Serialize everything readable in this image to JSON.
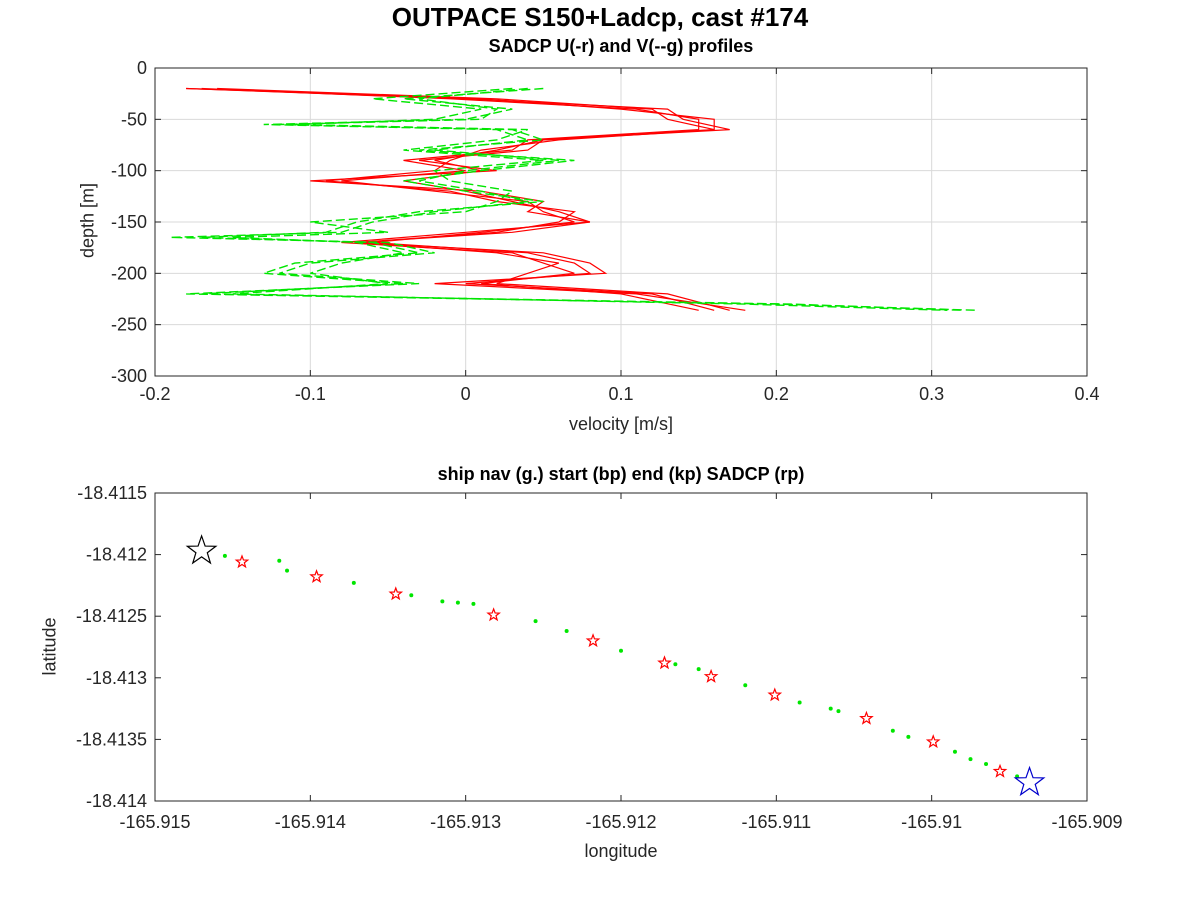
{
  "figure": {
    "title": "OUTPACE S150+Ladcp, cast #174"
  },
  "chart_data": [
    {
      "type": "line",
      "title": "SADCP U(-r) and V(--g) profiles",
      "xlabel": "velocity [m/s]",
      "ylabel": "depth [m]",
      "xlim": [
        -0.2,
        0.4
      ],
      "ylim": [
        -300,
        0
      ],
      "xticks": [
        "-0.2",
        "-0.1",
        "0",
        "0.1",
        "0.2",
        "0.3",
        "0.4"
      ],
      "yticks": [
        "0",
        "-50",
        "-100",
        "-150",
        "-200",
        "-250",
        "-300"
      ],
      "grid": true,
      "series": [
        {
          "style": "solid",
          "color": "#ff0000",
          "profiles": [
            {
              "depth": [
                -20,
                -30,
                -40,
                -50,
                -60,
                -70,
                -80,
                -90,
                -100,
                -110,
                -120,
                -130,
                -140,
                -150,
                -160,
                -170,
                -180,
                -190,
                -200,
                -210,
                -220,
                -236
              ],
              "u": [
                -0.18,
                0.0,
                0.13,
                0.14,
                0.17,
                0.05,
                0.02,
                -0.02,
                0.01,
                -0.04,
                0.0,
                0.03,
                0.06,
                0.08,
                0.03,
                -0.07,
                0.02,
                0.06,
                0.04,
                0.02,
                0.13,
                0.17
              ]
            },
            {
              "depth": [
                -20,
                -30,
                -40,
                -50,
                -60,
                -70,
                -80,
                -90,
                -100,
                -110,
                -120,
                -130,
                -140,
                -150,
                -160,
                -170,
                -180,
                -190,
                -200,
                -210,
                -220,
                -236
              ],
              "u": [
                -0.17,
                -0.01,
                0.11,
                0.15,
                0.15,
                0.04,
                0.03,
                -0.04,
                0.0,
                -0.08,
                -0.02,
                0.04,
                0.05,
                0.07,
                0.01,
                -0.06,
                0.04,
                0.07,
                0.08,
                0.0,
                0.12,
                0.16
              ]
            },
            {
              "depth": [
                -20,
                -30,
                -40,
                -50,
                -60,
                -70,
                -80,
                -90,
                -100,
                -110,
                -120,
                -130,
                -140,
                -150,
                -160,
                -170,
                -180,
                -190,
                -200,
                -210,
                -220,
                -236
              ],
              "u": [
                -0.16,
                0.02,
                0.12,
                0.13,
                0.16,
                0.06,
                0.01,
                -0.01,
                -0.02,
                -0.09,
                -0.01,
                0.02,
                0.07,
                0.06,
                0.02,
                -0.07,
                0.05,
                0.08,
                0.09,
                -0.02,
                0.11,
                0.18
              ]
            },
            {
              "depth": [
                -20,
                -30,
                -40,
                -50,
                -60,
                -70,
                -80,
                -90,
                -100,
                -110,
                -120,
                -130,
                -140,
                -150,
                -160,
                -170,
                -180,
                -190,
                -200,
                -210,
                -220,
                -236
              ],
              "u": [
                -0.18,
                0.01,
                0.1,
                0.16,
                0.16,
                0.05,
                0.04,
                -0.03,
                0.02,
                -0.1,
                0.01,
                0.05,
                0.04,
                0.08,
                0.0,
                -0.08,
                0.03,
                0.05,
                0.07,
                0.01,
                0.1,
                0.15
              ]
            }
          ]
        },
        {
          "style": "dashed",
          "color": "#00e600",
          "profiles": [
            {
              "depth": [
                -20,
                -30,
                -40,
                -50,
                -55,
                -60,
                -70,
                -80,
                -90,
                -100,
                -110,
                -120,
                -130,
                -140,
                -150,
                -160,
                -165,
                -170,
                -180,
                -190,
                -200,
                -210,
                -220,
                -230,
                -236
              ],
              "v": [
                0.05,
                -0.04,
                0.03,
                0.0,
                -0.13,
                0.02,
                0.04,
                -0.02,
                0.06,
                0.0,
                -0.03,
                0.01,
                0.04,
                -0.02,
                -0.06,
                -0.08,
                -0.19,
                -0.05,
                -0.02,
                -0.1,
                -0.12,
                -0.03,
                -0.18,
                0.2,
                0.33
              ]
            },
            {
              "depth": [
                -20,
                -30,
                -40,
                -50,
                -55,
                -60,
                -70,
                -80,
                -90,
                -100,
                -110,
                -120,
                -130,
                -140,
                -150,
                -160,
                -165,
                -170,
                -180,
                -190,
                -200,
                -210,
                -220,
                -230,
                -236
              ],
              "v": [
                0.03,
                -0.06,
                0.01,
                -0.02,
                -0.11,
                0.04,
                0.02,
                -0.04,
                0.05,
                -0.02,
                -0.01,
                0.03,
                0.02,
                0.0,
                -0.1,
                -0.05,
                -0.15,
                -0.07,
                -0.04,
                -0.08,
                -0.1,
                -0.05,
                -0.15,
                0.18,
                0.31
              ]
            },
            {
              "depth": [
                -20,
                -30,
                -40,
                -50,
                -55,
                -60,
                -70,
                -80,
                -90,
                -100,
                -110,
                -120,
                -130,
                -140,
                -150,
                -160,
                -165,
                -170,
                -180,
                -190,
                -200,
                -210,
                -220,
                -230,
                -236
              ],
              "v": [
                0.04,
                -0.03,
                0.02,
                0.01,
                -0.12,
                0.03,
                0.05,
                -0.03,
                0.07,
                0.01,
                -0.04,
                0.0,
                0.05,
                -0.03,
                -0.07,
                -0.09,
                -0.17,
                -0.06,
                -0.03,
                -0.11,
                -0.13,
                -0.04,
                -0.17,
                0.21,
                0.32
              ]
            }
          ]
        }
      ]
    },
    {
      "type": "scatter",
      "title": "ship nav (g.) start (bp) end (kp) SADCP (rp)",
      "xlabel": "longitude",
      "ylabel": "latitude",
      "xlim": [
        -165.915,
        -165.909
      ],
      "ylim": [
        -18.414,
        -18.4115
      ],
      "xticks": [
        "-165.915",
        "-165.914",
        "-165.913",
        "-165.912",
        "-165.911",
        "-165.91",
        "-165.909"
      ],
      "yticks": [
        "-18.4115",
        "-18.412",
        "-18.4125",
        "-18.413",
        "-18.4135",
        "-18.414"
      ],
      "grid": false,
      "start": {
        "lon": -165.9147,
        "lat": -18.41197,
        "marker": "star",
        "color": "#000000"
      },
      "end": {
        "lon": -165.90937,
        "lat": -18.41385,
        "marker": "star",
        "color": "#0000cc"
      },
      "sadcp_points": [
        {
          "lon": -165.91444,
          "lat": -18.41206
        },
        {
          "lon": -165.91396,
          "lat": -18.41218
        },
        {
          "lon": -165.91345,
          "lat": -18.41232
        },
        {
          "lon": -165.91282,
          "lat": -18.41249
        },
        {
          "lon": -165.91218,
          "lat": -18.4127
        },
        {
          "lon": -165.91172,
          "lat": -18.41288
        },
        {
          "lon": -165.91142,
          "lat": -18.41299
        },
        {
          "lon": -165.91101,
          "lat": -18.41314
        },
        {
          "lon": -165.91042,
          "lat": -18.41333
        },
        {
          "lon": -165.90999,
          "lat": -18.41352
        },
        {
          "lon": -165.90956,
          "lat": -18.41376
        }
      ],
      "nav_points": [
        {
          "lon": -165.91455,
          "lat": -18.41201
        },
        {
          "lon": -165.9142,
          "lat": -18.41205
        },
        {
          "lon": -165.91415,
          "lat": -18.41213
        },
        {
          "lon": -165.91372,
          "lat": -18.41223
        },
        {
          "lon": -165.91335,
          "lat": -18.41233
        },
        {
          "lon": -165.91315,
          "lat": -18.41238
        },
        {
          "lon": -165.91305,
          "lat": -18.41239
        },
        {
          "lon": -165.91295,
          "lat": -18.4124
        },
        {
          "lon": -165.91255,
          "lat": -18.41254
        },
        {
          "lon": -165.91235,
          "lat": -18.41262
        },
        {
          "lon": -165.912,
          "lat": -18.41278
        },
        {
          "lon": -165.91165,
          "lat": -18.41289
        },
        {
          "lon": -165.9115,
          "lat": -18.41293
        },
        {
          "lon": -165.9112,
          "lat": -18.41306
        },
        {
          "lon": -165.91085,
          "lat": -18.4132
        },
        {
          "lon": -165.91065,
          "lat": -18.41325
        },
        {
          "lon": -165.9106,
          "lat": -18.41327
        },
        {
          "lon": -165.91025,
          "lat": -18.41343
        },
        {
          "lon": -165.91015,
          "lat": -18.41348
        },
        {
          "lon": -165.90985,
          "lat": -18.4136
        },
        {
          "lon": -165.90975,
          "lat": -18.41366
        },
        {
          "lon": -165.90965,
          "lat": -18.4137
        },
        {
          "lon": -165.90945,
          "lat": -18.4138
        }
      ]
    }
  ]
}
